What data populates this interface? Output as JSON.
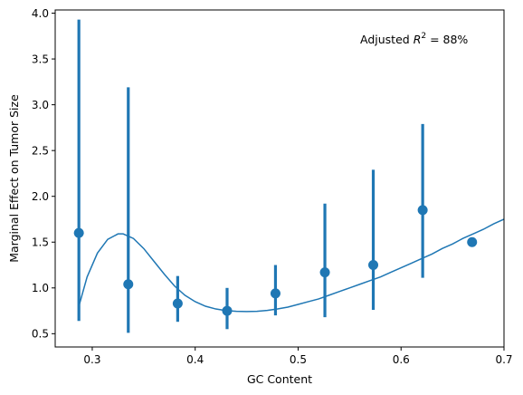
{
  "chart_data": {
    "type": "scatter",
    "xlabel": "GC Content",
    "ylabel": "Marginal Effect on Tumor Size",
    "xlim": [
      0.264,
      0.7
    ],
    "ylim": [
      0.355,
      4.035
    ],
    "xticks": [
      0.3,
      0.4,
      0.5,
      0.6,
      0.7
    ],
    "xtick_labels": [
      "0.3",
      "0.4",
      "0.5",
      "0.6",
      "0.7"
    ],
    "yticks": [
      0.5,
      1.0,
      1.5,
      2.0,
      2.5,
      3.0,
      3.5,
      4.0
    ],
    "ytick_labels": [
      "0.5",
      "1.0",
      "1.5",
      "2.0",
      "2.5",
      "3.0",
      "3.5",
      "4.0"
    ],
    "annotation": {
      "prefix": "Adjusted ",
      "symbol": "R",
      "superscript": "2",
      "suffix": " = 88%"
    },
    "color": "#1f77b4",
    "points": {
      "x": [
        0.287,
        0.335,
        0.383,
        0.431,
        0.478,
        0.526,
        0.573,
        0.621,
        0.669
      ],
      "y": [
        1.6,
        1.04,
        0.83,
        0.75,
        0.94,
        1.17,
        1.25,
        1.85,
        1.5
      ],
      "lower": [
        0.64,
        0.51,
        0.63,
        0.55,
        0.7,
        0.68,
        0.76,
        1.11,
        null
      ],
      "upper": [
        3.93,
        3.19,
        1.13,
        1.0,
        1.25,
        1.92,
        2.29,
        2.79,
        null
      ]
    },
    "curve": {
      "x": [
        0.287,
        0.295,
        0.305,
        0.315,
        0.325,
        0.33,
        0.34,
        0.35,
        0.36,
        0.37,
        0.38,
        0.39,
        0.4,
        0.41,
        0.42,
        0.43,
        0.44,
        0.45,
        0.46,
        0.47,
        0.48,
        0.49,
        0.5,
        0.51,
        0.52,
        0.53,
        0.54,
        0.55,
        0.56,
        0.57,
        0.58,
        0.59,
        0.6,
        0.61,
        0.62,
        0.63,
        0.64,
        0.65,
        0.66,
        0.67,
        0.68,
        0.69,
        0.7
      ],
      "y": [
        0.8,
        1.12,
        1.38,
        1.53,
        1.59,
        1.59,
        1.54,
        1.43,
        1.29,
        1.15,
        1.02,
        0.92,
        0.85,
        0.8,
        0.77,
        0.752,
        0.744,
        0.742,
        0.745,
        0.755,
        0.77,
        0.79,
        0.82,
        0.85,
        0.88,
        0.92,
        0.96,
        1.0,
        1.04,
        1.08,
        1.12,
        1.17,
        1.22,
        1.27,
        1.32,
        1.37,
        1.43,
        1.48,
        1.54,
        1.59,
        1.64,
        1.7,
        1.75
      ]
    }
  }
}
